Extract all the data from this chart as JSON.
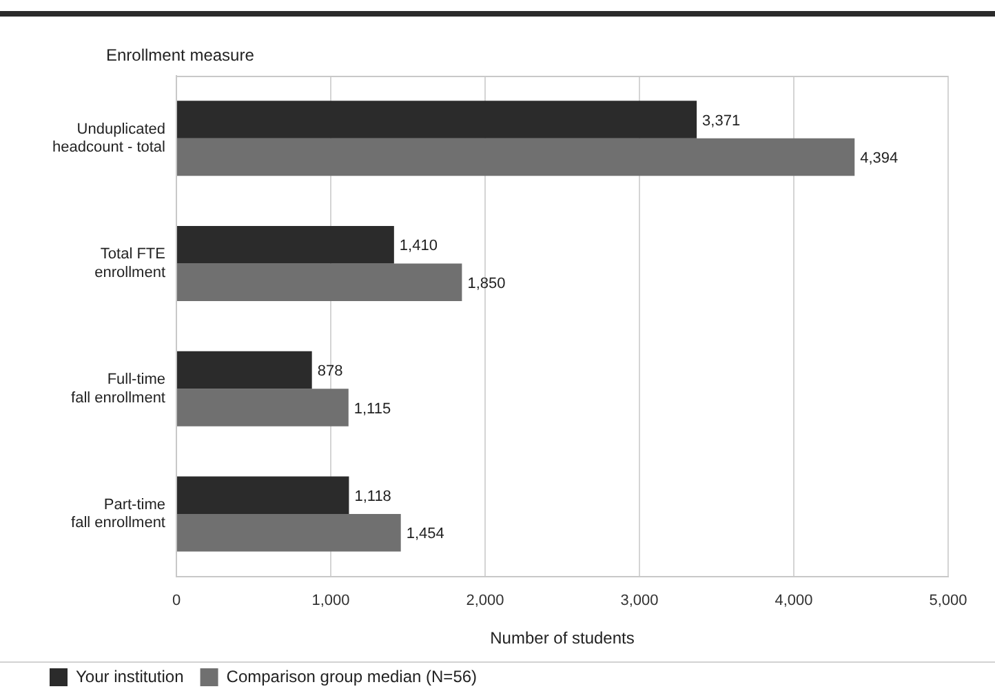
{
  "chart_data": {
    "type": "bar",
    "orientation": "horizontal",
    "ylabel": "Enrollment measure",
    "xlabel": "Number of students",
    "categories": [
      "Unduplicated headcount - total",
      "Total FTE enrollment",
      "Full-time fall enrollment",
      "Part-time fall enrollment"
    ],
    "series": [
      {
        "name": "Your institution",
        "color": "#2b2b2b",
        "values": [
          3371,
          1410,
          878,
          1118
        ],
        "value_labels": [
          "3,371",
          "1,410",
          "878",
          "1,118"
        ]
      },
      {
        "name": "Comparison group median (N=56)",
        "color": "#707070",
        "values": [
          4394,
          1850,
          1115,
          1454
        ],
        "value_labels": [
          "4,394",
          "1,850",
          "1,115",
          "1,454"
        ]
      }
    ],
    "xlim": [
      0,
      5000
    ],
    "xticks": [
      0,
      {
        "value": 1000,
        "label": "1,000"
      },
      {
        "value": 2000,
        "label": "2,000"
      },
      {
        "value": 3000,
        "label": "3,000"
      },
      {
        "value": 4000,
        "label": "4,000"
      },
      {
        "value": 5000,
        "label": "5,000"
      }
    ],
    "grid": "x",
    "legend": "bottom left"
  }
}
